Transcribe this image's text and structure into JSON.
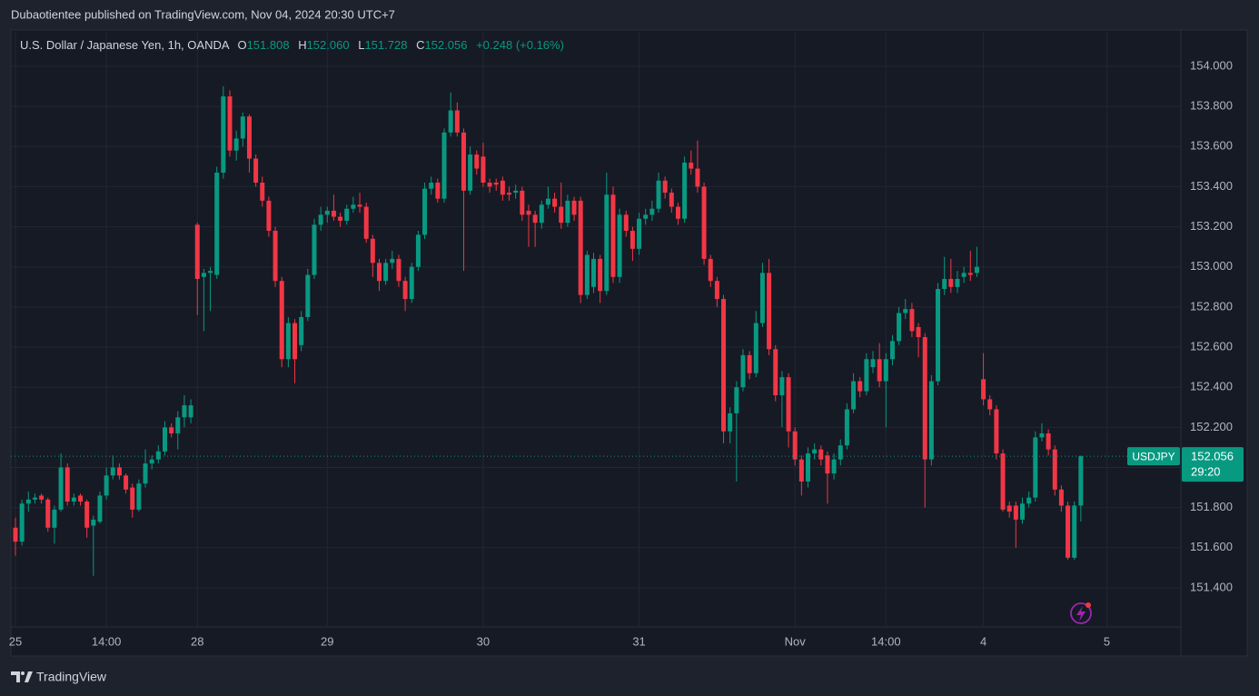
{
  "chart_data": {
    "type": "candlestick",
    "publisher": "Dubaotientee published on TradingView.com, Nov 04, 2024 20:30 UTC+7",
    "title": "U.S. Dollar / Japanese Yen, 1h, OANDA",
    "ohlc_legend": [
      {
        "key": "O",
        "value": "151.808"
      },
      {
        "key": "H",
        "value": "152.060"
      },
      {
        "key": "L",
        "value": "151.728"
      },
      {
        "key": "C",
        "value": "152.056"
      }
    ],
    "change": "+0.248 (+0.16%)",
    "price_tag": {
      "symbol": "USDJPY",
      "price": {
        "value": 152.056,
        "label": "152.056"
      },
      "countdown": "29:20"
    },
    "brand": "TradingView",
    "up_color": "#089981",
    "down_color": "#f23645",
    "grid": true,
    "xlim": [
      -0.7,
      179.4
    ],
    "xticks": [
      {
        "value": 0,
        "label": "25"
      },
      {
        "value": 14,
        "label": "14:00"
      },
      {
        "value": 28,
        "label": "28"
      },
      {
        "value": 48,
        "label": "29"
      },
      {
        "value": 72,
        "label": "30"
      },
      {
        "value": 96,
        "label": "31"
      },
      {
        "value": 120,
        "label": "Nov"
      },
      {
        "value": 134,
        "label": "14:00"
      },
      {
        "value": 149,
        "label": "4"
      },
      {
        "value": 168,
        "label": "5"
      }
    ],
    "ylim": [
      151.205,
      154.172
    ],
    "yticks": [
      {
        "value": 151.4,
        "label": "151.400"
      },
      {
        "value": 151.6,
        "label": "151.600"
      },
      {
        "value": 151.8,
        "label": "151.800"
      },
      {
        "value": 152.0,
        "label": "152.000"
      },
      {
        "value": 152.2,
        "label": "152.200"
      },
      {
        "value": 152.4,
        "label": "152.400"
      },
      {
        "value": 152.6,
        "label": "152.600"
      },
      {
        "value": 152.8,
        "label": "152.800"
      },
      {
        "value": 153.0,
        "label": "153.000"
      },
      {
        "value": 153.2,
        "label": "153.200"
      },
      {
        "value": 153.4,
        "label": "153.400"
      },
      {
        "value": 153.6,
        "label": "153.600"
      },
      {
        "value": 153.8,
        "label": "153.800"
      },
      {
        "value": 154.0,
        "label": "154.000"
      }
    ],
    "x": [
      0,
      1,
      2,
      3,
      4,
      5,
      6,
      7,
      8,
      9,
      10,
      11,
      12,
      13,
      14,
      15,
      16,
      17,
      18,
      19,
      20,
      21,
      22,
      23,
      24,
      25,
      26,
      27,
      28,
      29,
      30,
      31,
      32,
      33,
      34,
      35,
      36,
      37,
      38,
      39,
      40,
      41,
      42,
      43,
      44,
      45,
      46,
      47,
      48,
      49,
      50,
      51,
      52,
      53,
      54,
      55,
      56,
      57,
      58,
      59,
      60,
      61,
      62,
      63,
      64,
      65,
      66,
      67,
      68,
      69,
      70,
      71,
      72,
      73,
      74,
      75,
      76,
      77,
      78,
      79,
      80,
      81,
      82,
      83,
      84,
      85,
      86,
      87,
      88,
      89,
      90,
      91,
      92,
      93,
      94,
      95,
      96,
      97,
      98,
      99,
      100,
      101,
      102,
      103,
      104,
      105,
      106,
      107,
      108,
      109,
      110,
      111,
      112,
      113,
      114,
      115,
      116,
      117,
      118,
      119,
      120,
      121,
      122,
      123,
      124,
      125,
      126,
      127,
      128,
      129,
      130,
      131,
      132,
      133,
      134,
      135,
      136,
      137,
      138,
      139,
      140,
      141,
      142,
      143,
      144,
      145,
      146,
      147,
      148,
      149,
      150,
      151,
      152,
      153,
      154,
      155,
      156,
      157,
      158,
      159,
      160,
      161,
      162,
      163,
      164
    ],
    "open": [
      151.7,
      151.63,
      151.82,
      151.84,
      151.86,
      151.84,
      151.7,
      151.79,
      152.0,
      151.83,
      151.86,
      151.83,
      151.71,
      151.73,
      151.86,
      151.96,
      152.0,
      151.96,
      151.9,
      151.79,
      151.92,
      152.02,
      152.04,
      152.08,
      152.2,
      152.17,
      152.25,
      152.25,
      153.21,
      152.95,
      152.97,
      152.96,
      153.47,
      153.85,
      153.58,
      153.64,
      153.75,
      153.54,
      153.42,
      153.33,
      153.18,
      152.93,
      152.54,
      152.72,
      152.61,
      152.75,
      152.96,
      153.21,
      153.26,
      153.28,
      153.25,
      153.23,
      153.29,
      153.31,
      153.3,
      153.14,
      153.02,
      152.93,
      153.02,
      153.04,
      152.93,
      152.84,
      153.0,
      153.16,
      153.39,
      153.42,
      153.34,
      153.67,
      153.78,
      153.67,
      153.38,
      153.56,
      153.55,
      153.42,
      153.42,
      153.43,
      153.37,
      153.37,
      153.38,
      153.28,
      153.26,
      153.22,
      153.31,
      153.34,
      153.3,
      153.22,
      153.33,
      153.33,
      152.86,
      152.9,
      153.04,
      152.88,
      153.36,
      152.95,
      153.26,
      153.18,
      153.09,
      153.24,
      153.26,
      153.29,
      153.43,
      153.37,
      153.3,
      153.24,
      153.52,
      153.49,
      153.4,
      153.04,
      152.93,
      152.84,
      152.18,
      152.27,
      152.4,
      152.56,
      152.47,
      152.72,
      152.97,
      152.59,
      152.36,
      152.45,
      152.18,
      152.04,
      151.93,
      152.07,
      152.09,
      152.06,
      151.97,
      152.04,
      152.11,
      152.29,
      152.43,
      152.38,
      152.5,
      152.54,
      152.43,
      152.54,
      152.63,
      152.77,
      152.79,
      152.7,
      152.65,
      152.04,
      152.43,
      152.89,
      152.94,
      152.9,
      152.95,
      152.97,
      152.97,
      152.44,
      152.34,
      152.29,
      152.07,
      151.81,
      151.81,
      151.74,
      151.82,
      151.85,
      152.15,
      152.17,
      152.09,
      151.89,
      151.81,
      151.55,
      151.81
    ],
    "high": [
      151.75,
      151.84,
      151.88,
      151.87,
      151.87,
      151.85,
      151.81,
      152.07,
      152.02,
      151.87,
      151.87,
      151.84,
      151.76,
      151.88,
      152.0,
      152.06,
      152.02,
      151.97,
      151.92,
      151.94,
      152.09,
      152.06,
      152.11,
      152.23,
      152.22,
      152.28,
      152.36,
      152.34,
      153.22,
      152.99,
      153.0,
      153.5,
      153.9,
      153.88,
      153.68,
      153.77,
      153.76,
      153.56,
      153.45,
      153.35,
      153.2,
      152.95,
      152.75,
      152.74,
      152.78,
      152.99,
      153.24,
      153.3,
      153.3,
      153.36,
      153.27,
      153.31,
      153.35,
      153.37,
      153.32,
      153.16,
      153.04,
      153.04,
      153.08,
      153.06,
      152.95,
      153.02,
      153.18,
      153.42,
      153.45,
      153.44,
      153.69,
      153.87,
      153.82,
      153.69,
      153.6,
      153.58,
      153.62,
      153.44,
      153.44,
      153.45,
      153.4,
      153.41,
      153.4,
      153.31,
      153.28,
      153.33,
      153.4,
      153.37,
      153.42,
      153.36,
      153.35,
      153.35,
      153.08,
      153.07,
      153.06,
      153.47,
      153.4,
      153.29,
      153.28,
      153.2,
      153.27,
      153.29,
      153.33,
      153.47,
      153.45,
      153.39,
      153.32,
      153.55,
      153.58,
      153.63,
      153.42,
      153.06,
      152.95,
      152.86,
      152.3,
      152.43,
      152.59,
      152.58,
      152.78,
      153.02,
      153.04,
      152.61,
      152.48,
      152.47,
      152.2,
      152.06,
      152.1,
      152.12,
      152.11,
      152.08,
      152.07,
      152.14,
      152.32,
      152.47,
      152.45,
      152.57,
      152.58,
      152.62,
      152.57,
      152.66,
      152.8,
      152.84,
      152.82,
      152.72,
      152.67,
      152.46,
      152.92,
      153.05,
      153.04,
      152.98,
      153.0,
      153.08,
      153.1,
      152.57,
      152.36,
      152.31,
      152.09,
      151.83,
      151.83,
      151.85,
      151.88,
      152.18,
      152.22,
      152.19,
      152.11,
      151.91,
      151.83,
      151.83,
      152.06
    ],
    "low": [
      151.56,
      151.61,
      151.78,
      151.82,
      151.82,
      151.68,
      151.62,
      151.78,
      151.81,
      151.81,
      151.81,
      151.65,
      151.46,
      151.72,
      151.84,
      151.94,
      151.94,
      151.87,
      151.75,
      151.78,
      151.9,
      151.99,
      152.02,
      152.06,
      152.15,
      152.09,
      152.2,
      152.22,
      152.76,
      152.68,
      152.78,
      152.94,
      153.44,
      153.55,
      153.53,
      153.6,
      153.47,
      153.4,
      153.3,
      153.15,
      152.9,
      152.5,
      152.5,
      152.42,
      152.58,
      152.73,
      152.94,
      153.18,
      153.22,
      153.23,
      153.2,
      153.21,
      153.27,
      153.27,
      153.12,
      152.95,
      152.88,
      152.91,
      152.99,
      152.9,
      152.78,
      152.82,
      152.98,
      153.14,
      153.36,
      153.32,
      153.32,
      153.65,
      153.65,
      152.98,
      153.36,
      153.46,
      153.4,
      153.37,
      153.38,
      153.33,
      153.33,
      153.34,
      153.23,
      153.1,
      153.1,
      153.19,
      153.29,
      153.27,
      153.19,
      153.2,
      153.23,
      152.82,
      152.84,
      152.87,
      152.82,
      152.86,
      152.92,
      152.92,
      153.15,
      153.03,
      153.06,
      153.21,
      153.23,
      153.27,
      153.34,
      153.27,
      153.21,
      153.22,
      153.46,
      153.37,
      153.01,
      152.9,
      152.8,
      152.12,
      152.12,
      151.93,
      152.38,
      152.44,
      152.45,
      152.7,
      152.56,
      152.33,
      152.2,
      152.1,
      152.01,
      151.86,
      151.9,
      152.04,
      152.01,
      151.82,
      151.94,
      152.01,
      152.09,
      152.27,
      152.35,
      152.36,
      152.47,
      152.4,
      152.2,
      152.51,
      152.61,
      152.74,
      152.65,
      152.55,
      151.8,
      152.01,
      152.41,
      152.86,
      152.87,
      152.87,
      152.92,
      152.93,
      152.95,
      152.31,
      152.26,
      152.04,
      151.78,
      151.75,
      151.6,
      151.72,
      151.8,
      151.83,
      152.13,
      152.06,
      151.86,
      151.78,
      151.54,
      151.54,
      151.73
    ],
    "close": [
      151.63,
      151.82,
      151.84,
      151.85,
      151.84,
      151.7,
      151.79,
      152.0,
      151.83,
      151.85,
      151.83,
      151.7,
      151.74,
      151.86,
      151.96,
      152.0,
      151.96,
      151.89,
      151.79,
      151.92,
      152.02,
      152.04,
      152.08,
      152.2,
      152.17,
      152.25,
      152.31,
      152.31,
      152.94,
      152.97,
      152.98,
      153.47,
      153.85,
      153.58,
      153.64,
      153.75,
      153.54,
      153.42,
      153.33,
      153.18,
      152.93,
      152.54,
      152.72,
      152.54,
      152.75,
      152.96,
      153.21,
      153.26,
      153.28,
      153.25,
      153.23,
      153.29,
      153.31,
      153.3,
      153.14,
      153.02,
      152.93,
      153.02,
      153.04,
      152.93,
      152.84,
      153.0,
      153.16,
      153.39,
      153.42,
      153.34,
      153.67,
      153.78,
      153.67,
      153.38,
      153.56,
      153.49,
      153.42,
      153.4,
      153.41,
      153.36,
      153.36,
      153.38,
      153.26,
      153.26,
      153.22,
      153.31,
      153.34,
      153.3,
      153.22,
      153.33,
      153.26,
      152.86,
      153.06,
      153.04,
      152.88,
      153.36,
      152.95,
      153.26,
      153.18,
      153.09,
      153.24,
      153.26,
      153.29,
      153.43,
      153.37,
      153.3,
      153.24,
      153.52,
      153.49,
      153.4,
      153.04,
      152.93,
      152.84,
      152.18,
      152.27,
      152.4,
      152.56,
      152.47,
      152.72,
      152.97,
      152.59,
      152.36,
      152.45,
      152.18,
      152.04,
      151.93,
      152.07,
      152.09,
      152.04,
      151.97,
      152.04,
      152.11,
      152.29,
      152.43,
      152.38,
      152.54,
      152.54,
      152.43,
      152.54,
      152.63,
      152.77,
      152.79,
      152.68,
      152.65,
      152.04,
      152.43,
      152.89,
      152.94,
      152.9,
      152.94,
      152.97,
      152.96,
      153.0,
      152.34,
      152.29,
      152.07,
      151.79,
      151.78,
      151.74,
      151.82,
      151.85,
      152.15,
      152.17,
      152.09,
      151.89,
      151.81,
      151.55,
      151.81,
      152.056
    ]
  }
}
